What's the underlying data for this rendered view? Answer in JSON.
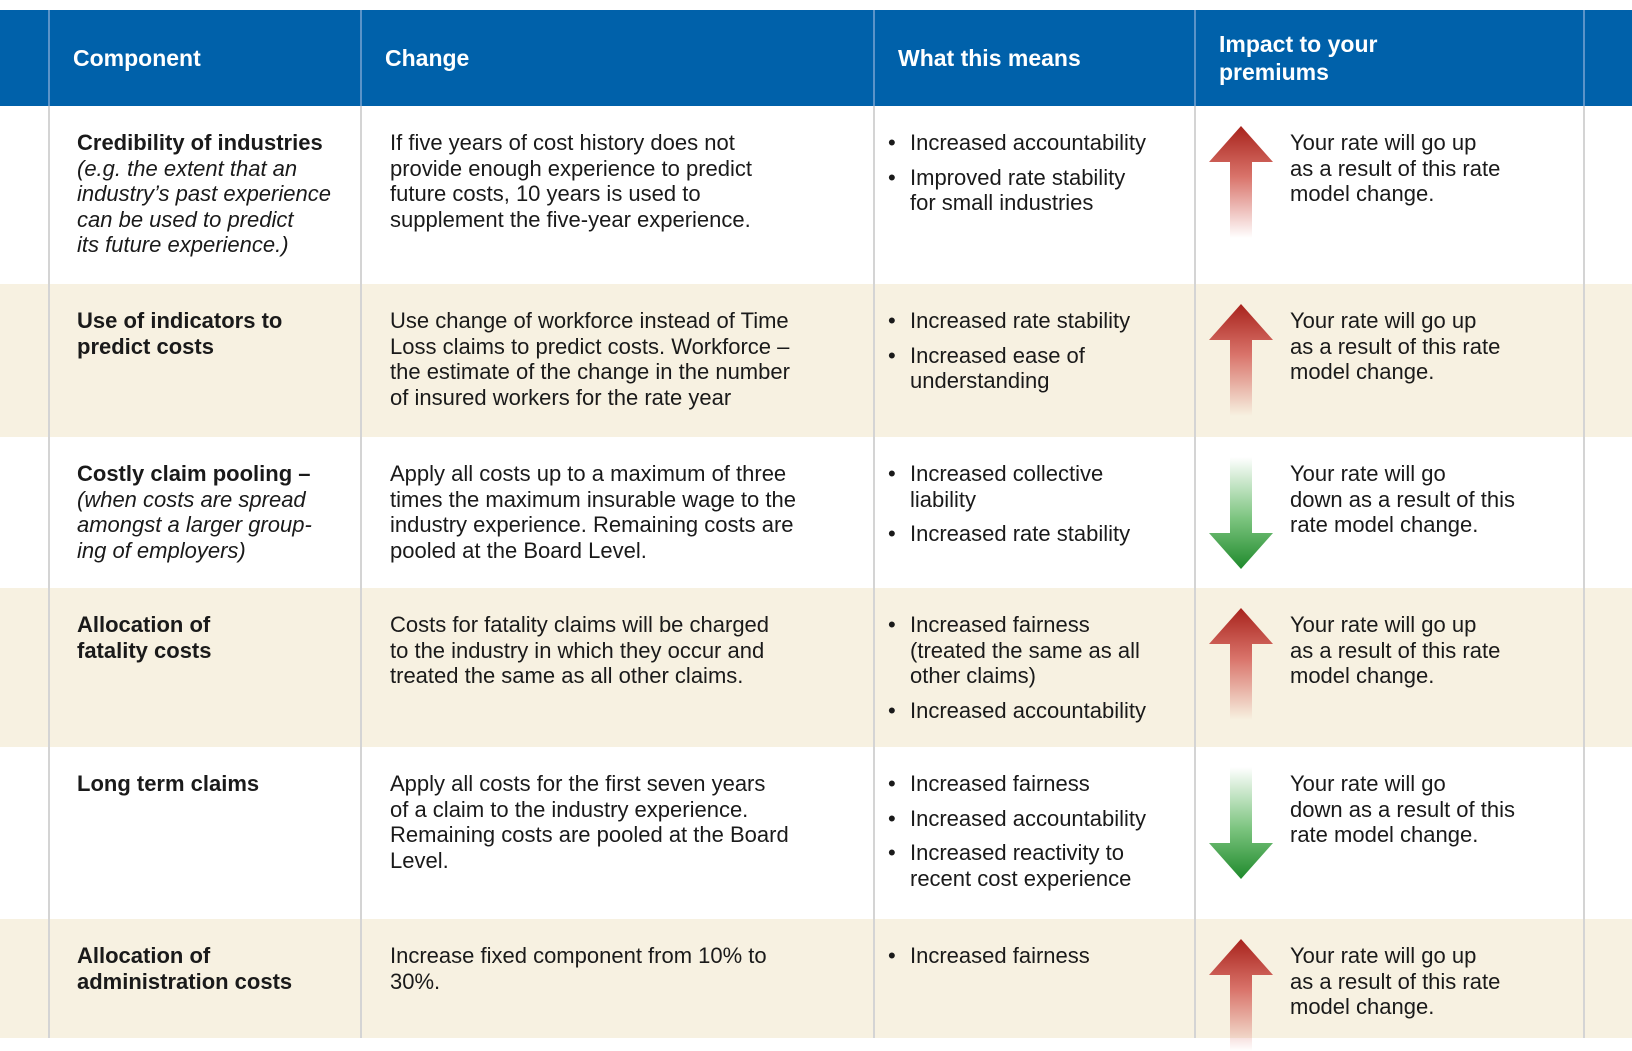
{
  "table": {
    "header": [
      "Component",
      "Change",
      "What this means",
      [
        "Impact to your",
        "premiums"
      ]
    ],
    "rows": [
      {
        "component": [
          "Credibility of industries"
        ],
        "component_note": [
          "(e.g. the extent that an",
          "industry’s past experience",
          "can be used to predict",
          "its future experience.)"
        ],
        "change": [
          "If five years of cost history does not",
          "provide enough experience to predict",
          "future costs, 10 years is used to",
          "supplement the five-year experience."
        ],
        "means": [
          [
            "Increased accountability"
          ],
          [
            "Improved rate stability",
            "for small industries"
          ]
        ],
        "impact": [
          "Your rate will go up",
          "as a result of this rate",
          "model change."
        ]
      },
      {
        "component": [
          "Use of indicators to",
          "predict costs"
        ],
        "component_note": [],
        "change": [
          "Use change of workforce instead of Time",
          "Loss claims to predict costs. Workforce –",
          "the estimate of the change in the number",
          "of insured workers for the rate year"
        ],
        "means": [
          [
            "Increased rate stability"
          ],
          [
            "Increased ease of",
            "understanding"
          ]
        ],
        "impact": [
          "Your rate will go up",
          "as a result of this rate",
          "model change."
        ]
      },
      {
        "component": [
          "Costly claim pooling –"
        ],
        "component_note": [
          "(when costs are spread",
          "amongst a larger group-",
          "ing of employers)"
        ],
        "change": [
          "Apply all costs up to a maximum of three",
          "times the maximum insurable wage to the",
          "industry experience. Remaining costs are",
          "pooled at the Board Level."
        ],
        "means": [
          [
            "Increased collective",
            "liability"
          ],
          [
            "Increased rate stability"
          ]
        ],
        "impact": [
          "Your rate will go",
          "down as a result of this",
          "rate model change."
        ]
      },
      {
        "component": [
          "Allocation of",
          "fatality costs"
        ],
        "component_note": [],
        "change": [
          "Costs for fatality claims will be charged",
          "to the industry in which they occur and",
          "treated the same as all other claims."
        ],
        "means": [
          [
            "Increased fairness",
            "(treated the same as all",
            "other claims)"
          ],
          [
            "Increased accountability"
          ]
        ],
        "impact": [
          "Your rate will go up",
          "as a result of this rate",
          "model change."
        ]
      },
      {
        "component": [
          "Long term claims"
        ],
        "component_note": [],
        "change": [
          "Apply all costs for the first seven years",
          "of a claim to the industry experience.",
          "Remaining costs are pooled at the Board",
          "Level."
        ],
        "means": [
          [
            "Increased fairness"
          ],
          [
            "Increased accountability"
          ],
          [
            "Increased reactivity to",
            "recent cost experience"
          ]
        ],
        "impact": [
          "Your rate will go",
          "down as a result of this",
          "rate model change."
        ]
      },
      {
        "component": [
          "Allocation of",
          "administration costs"
        ],
        "component_note": [],
        "change": [
          "Increase fixed component from 10% to",
          "30%."
        ],
        "means": [
          [
            "Increased fairness"
          ]
        ],
        "impact": [
          "Your rate will go up",
          "as a result of this rate",
          "model change."
        ]
      }
    ]
  }
}
